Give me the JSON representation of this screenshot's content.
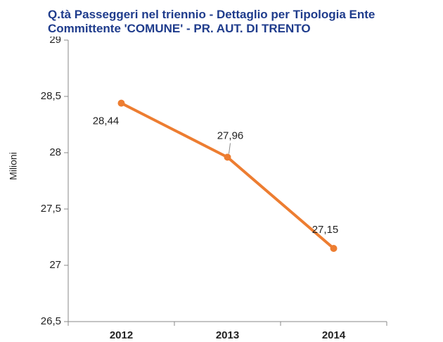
{
  "chart_data": {
    "type": "line",
    "title": [
      "Q.tà Passeggeri nel triennio - Dettaglio per Tipologia Ente",
      "Committente 'COMUNE' - PR. AUT. DI TRENTO"
    ],
    "y_label": "Milioni",
    "categories": [
      "2012",
      "2013",
      "2014"
    ],
    "values": [
      28.44,
      27.96,
      27.15
    ],
    "value_labels": [
      "28,44",
      "27,96",
      "27,15"
    ],
    "color": "#ed7d31",
    "ylim": [
      26.5,
      29
    ],
    "yticks": [
      {
        "value": 26.5,
        "label": "26,5"
      },
      27,
      {
        "value": 27.5,
        "label": "27,5"
      },
      28,
      {
        "value": 28.5,
        "label": "28,5"
      },
      29
    ],
    "grid": false
  }
}
